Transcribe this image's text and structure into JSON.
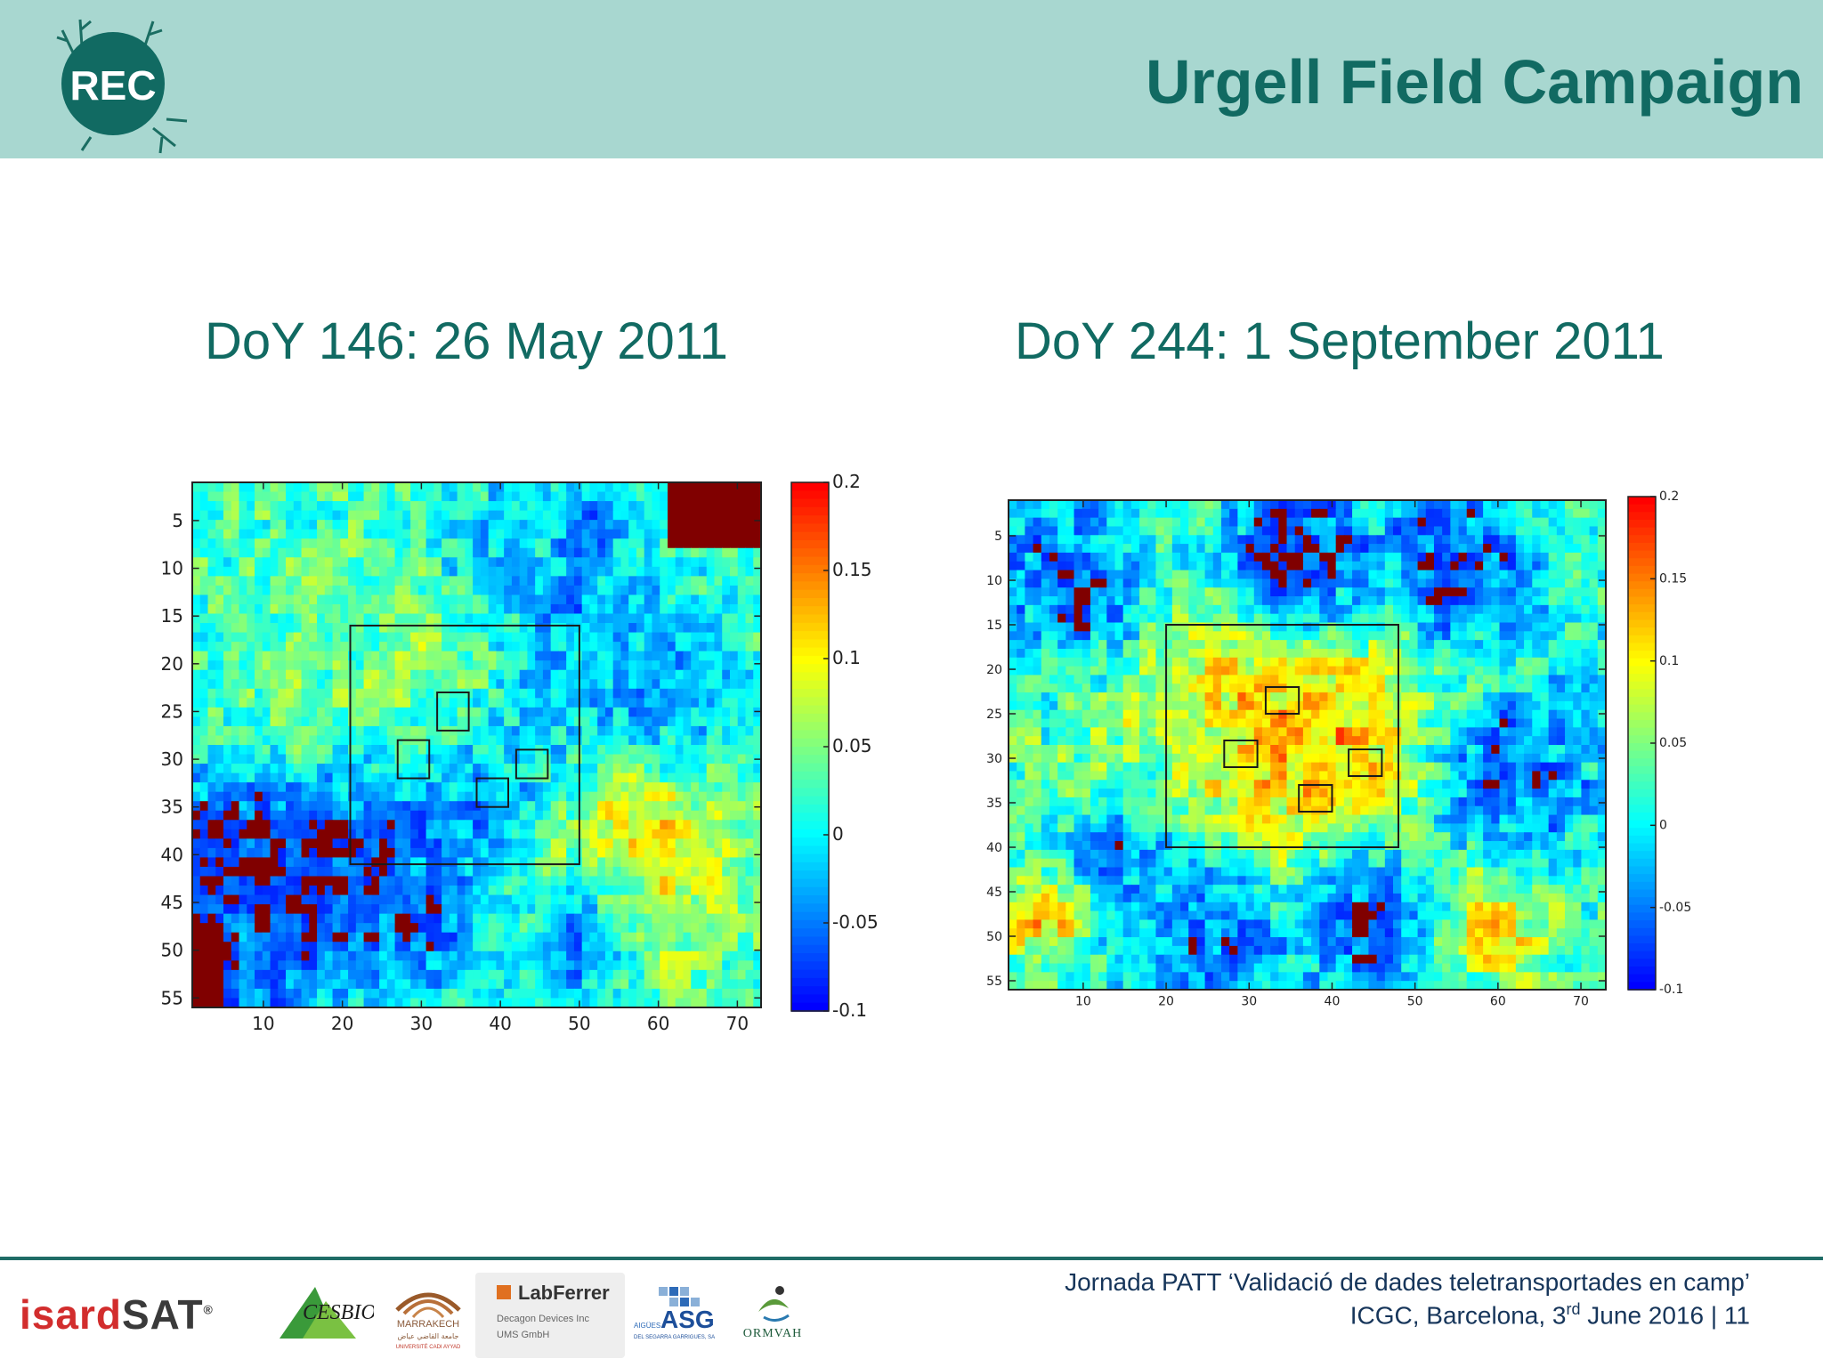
{
  "header": {
    "title": "Urgell Field Campaign",
    "logo_text": "REC"
  },
  "footer": {
    "line1": "Jornada PATT ‘Validació de dades teletransportades en camp’",
    "line2_pre": "ICGC, Barcelona, 3",
    "line2_sup": "rd",
    "line2_post": " June 2016 | 11"
  },
  "logos": {
    "isard_a": "isard",
    "isard_b": "SAT",
    "isard_mark": "®",
    "cesbio": "CESBIO",
    "marrakech": "MARRAKECH",
    "marrakech_ar": "جامعة القاضي عياض",
    "marrakech_sub": "UNIVERSITÉ CADI AYYAD",
    "labferrer": "LabFerrer",
    "labferrer_l2": "Decagon Devices Inc",
    "labferrer_l3": "UMS GmbH",
    "asg": "ASG",
    "asg_small": "AIGÜES",
    "asg_sub": "DEL SEGARRA GARRIGUES, SA",
    "ormvah": "ORMVAH"
  },
  "chart_data": [
    {
      "type": "heatmap",
      "title": "DoY 146: 26 May 2011",
      "x_ticks": [
        10,
        20,
        30,
        40,
        50,
        60,
        70
      ],
      "y_ticks": [
        5,
        10,
        15,
        20,
        25,
        30,
        35,
        40,
        45,
        50,
        55
      ],
      "xlim": [
        1,
        73
      ],
      "ylim": [
        1,
        56
      ],
      "y_reversed": true,
      "colorbar_ticks": [
        "0.2",
        "0.15",
        "0.1",
        "0.05",
        "0",
        "-0.05",
        "-0.1"
      ],
      "clim": [
        -0.1,
        0.2
      ],
      "colormap": "jet",
      "grid": {
        "cols": 73,
        "rows": 56,
        "seed": 146
      },
      "features": [
        {
          "kind": "base",
          "value": 0.025
        },
        {
          "kind": "band",
          "p1": [
            1,
            42
          ],
          "p2": [
            52,
            28
          ],
          "width": 7,
          "value": -0.085
        },
        {
          "kind": "band",
          "p1": [
            40,
            30
          ],
          "p2": [
            52,
            6
          ],
          "width": 4,
          "value": -0.055
        },
        {
          "kind": "blob",
          "cx": 15,
          "cy": 46,
          "r": 7,
          "value": -0.09
        },
        {
          "kind": "blob",
          "cx": 30,
          "cy": 47,
          "r": 6,
          "value": -0.07
        },
        {
          "kind": "blob",
          "cx": 8,
          "cy": 52,
          "r": 5,
          "value": -0.06
        },
        {
          "kind": "blob",
          "cx": 30,
          "cy": 20,
          "r": 9,
          "value": 0.05
        },
        {
          "kind": "blob",
          "cx": 15,
          "cy": 22,
          "r": 7,
          "value": 0.04
        },
        {
          "kind": "blob",
          "cx": 58,
          "cy": 38,
          "r": 9,
          "value": 0.12
        },
        {
          "kind": "blob",
          "cx": 55,
          "cy": 48,
          "r": 6,
          "value": 0.08
        },
        {
          "kind": "blob",
          "cx": 50,
          "cy": 50,
          "r": 5,
          "value": -0.06
        },
        {
          "kind": "blob",
          "cx": 62,
          "cy": 22,
          "r": 7,
          "value": -0.04
        },
        {
          "kind": "blob",
          "cx": 40,
          "cy": 7,
          "r": 6,
          "value": -0.02
        },
        {
          "kind": "rect",
          "x0": 62,
          "x1": 73,
          "y0": 1,
          "y1": 7,
          "value": -0.1
        },
        {
          "kind": "rect",
          "x0": 1,
          "x1": 4,
          "y0": 48,
          "y1": 56,
          "value": -0.1
        }
      ],
      "noise": 0.035,
      "boxes": [
        {
          "x0": 21,
          "x1": 50,
          "y0": 16,
          "y1": 41
        },
        {
          "x0": 32,
          "x1": 36,
          "y0": 23,
          "y1": 27
        },
        {
          "x0": 27,
          "x1": 31,
          "y0": 28,
          "y1": 32
        },
        {
          "x0": 42,
          "x1": 46,
          "y0": 29,
          "y1": 32
        },
        {
          "x0": 37,
          "x1": 41,
          "y0": 32,
          "y1": 35
        }
      ]
    },
    {
      "type": "heatmap",
      "title": "DoY 244: 1 September 2011",
      "x_ticks": [
        10,
        20,
        30,
        40,
        50,
        60,
        70
      ],
      "y_ticks": [
        5,
        10,
        15,
        20,
        25,
        30,
        35,
        40,
        45,
        50,
        55
      ],
      "xlim": [
        1,
        73
      ],
      "ylim": [
        1,
        56
      ],
      "y_reversed": true,
      "colorbar_ticks": [
        "0.2",
        "0.15",
        "0.1",
        "0.05",
        "0",
        "-0.05",
        "-0.1"
      ],
      "clim": [
        -0.1,
        0.2
      ],
      "colormap": "jet",
      "grid": {
        "cols": 73,
        "rows": 56,
        "seed": 244
      },
      "features": [
        {
          "kind": "base",
          "value": 0.02
        },
        {
          "kind": "blob",
          "cx": 36,
          "cy": 24,
          "r": 14,
          "value": 0.17
        },
        {
          "kind": "blob",
          "cx": 30,
          "cy": 32,
          "r": 8,
          "value": 0.12
        },
        {
          "kind": "blob",
          "cx": 50,
          "cy": 26,
          "r": 6,
          "value": 0.13
        },
        {
          "kind": "blob",
          "cx": 15,
          "cy": 34,
          "r": 8,
          "value": 0.06
        },
        {
          "kind": "blob",
          "cx": 35,
          "cy": 7,
          "r": 8,
          "value": -0.08
        },
        {
          "kind": "blob",
          "cx": 55,
          "cy": 8,
          "r": 8,
          "value": -0.07
        },
        {
          "kind": "blob",
          "cx": 8,
          "cy": 10,
          "r": 7,
          "value": -0.07
        },
        {
          "kind": "blob",
          "cx": 62,
          "cy": 32,
          "r": 8,
          "value": -0.07
        },
        {
          "kind": "blob",
          "cx": 12,
          "cy": 42,
          "r": 6,
          "value": -0.05
        },
        {
          "kind": "blob",
          "cx": 25,
          "cy": 50,
          "r": 7,
          "value": -0.06
        },
        {
          "kind": "blob",
          "cx": 45,
          "cy": 50,
          "r": 7,
          "value": -0.07
        },
        {
          "kind": "blob",
          "cx": 60,
          "cy": 50,
          "r": 5,
          "value": 0.1
        },
        {
          "kind": "blob",
          "cx": 5,
          "cy": 48,
          "r": 4,
          "value": 0.13
        }
      ],
      "noise": 0.04,
      "boxes": [
        {
          "x0": 20,
          "x1": 48,
          "y0": 15,
          "y1": 40
        },
        {
          "x0": 32,
          "x1": 36,
          "y0": 22,
          "y1": 25
        },
        {
          "x0": 27,
          "x1": 31,
          "y0": 28,
          "y1": 31
        },
        {
          "x0": 42,
          "x1": 46,
          "y0": 29,
          "y1": 32
        },
        {
          "x0": 36,
          "x1": 40,
          "y0": 33,
          "y1": 36
        }
      ]
    }
  ]
}
